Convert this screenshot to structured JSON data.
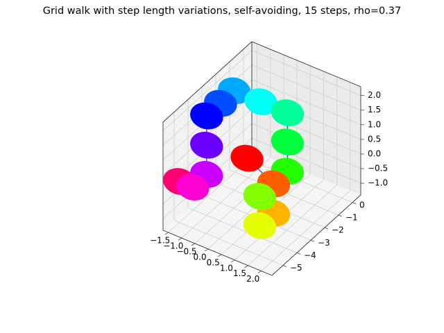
{
  "chart_data": {
    "type": "scatter",
    "projection": "3d",
    "title": "Grid walk with step length variations, self-avoiding, 15 steps, rho=0.37",
    "xlabel": "",
    "ylabel": "",
    "zlabel": "",
    "grid": true,
    "connecting_line": true,
    "colormap": "hsv",
    "line_color": "#1f77b4",
    "xlim": [
      -1.7,
      2.4
    ],
    "ylim": [
      -5.8,
      0.6
    ],
    "zlim": [
      -1.4,
      2.3
    ],
    "x_ticks": [
      "−1.5",
      "−1.0",
      "−0.5",
      "0.0",
      "0.5",
      "1.0",
      "1.5",
      "2.0"
    ],
    "y_ticks": [
      "−5",
      "−4",
      "−3",
      "−2",
      "−1",
      "0"
    ],
    "z_ticks": [
      "−1.0",
      "−0.5",
      "0.0",
      "0.5",
      "1.0",
      "1.5",
      "2.0"
    ],
    "points": [
      {
        "x": 0.0,
        "y": -3.0,
        "z": 0.5,
        "color": "#ff0000"
      },
      {
        "x": 1.0,
        "y": -3.0,
        "z": 0.0,
        "color": "#ff5e00"
      },
      {
        "x": 1.0,
        "y": -3.0,
        "z": -1.0,
        "color": "#ffb300"
      },
      {
        "x": 1.0,
        "y": -4.0,
        "z": -1.0,
        "color": "#e5ff00"
      },
      {
        "x": 1.0,
        "y": -4.0,
        "z": 0.0,
        "color": "#84ff00"
      },
      {
        "x": 1.0,
        "y": -2.0,
        "z": 0.0,
        "color": "#22ff00"
      },
      {
        "x": 1.0,
        "y": -2.0,
        "z": 1.0,
        "color": "#00ff3c"
      },
      {
        "x": 1.0,
        "y": -2.0,
        "z": 2.0,
        "color": "#00ff9a"
      },
      {
        "x": 0.0,
        "y": -2.0,
        "z": 2.0,
        "color": "#00fff7"
      },
      {
        "x": -1.0,
        "y": -2.0,
        "z": 2.0,
        "color": "#00a8ff"
      },
      {
        "x": -1.0,
        "y": -3.0,
        "z": 2.0,
        "color": "#004cff"
      },
      {
        "x": -1.0,
        "y": -4.0,
        "z": 2.0,
        "color": "#0000ff"
      },
      {
        "x": -1.0,
        "y": -4.0,
        "z": 1.0,
        "color": "#6a00ff"
      },
      {
        "x": -1.0,
        "y": -4.0,
        "z": 0.0,
        "color": "#c900ff"
      },
      {
        "x": -1.0,
        "y": -5.0,
        "z": 0.0,
        "color": "#ff00d3"
      },
      {
        "x": -1.5,
        "y": -5.0,
        "z": 0.0,
        "color": "#ff0073"
      }
    ]
  }
}
